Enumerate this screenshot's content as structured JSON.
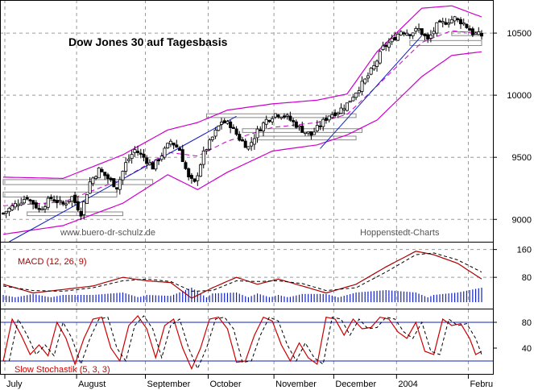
{
  "chart_data": [
    {
      "panel": "price",
      "type": "candlestick",
      "title": "Dow Jones 30 auf Tagesbasis",
      "watermark_left": "www.buero-dr-schulz.de",
      "watermark_right": "Hoppenstedt-Charts",
      "y_ticks": [
        9000,
        9500,
        10000,
        10500
      ],
      "ylim": [
        8820,
        10760
      ],
      "x_months": [
        "July",
        "August",
        "September",
        "October",
        "November",
        "December",
        "2004",
        "Febru"
      ],
      "close_anchors": [
        {
          "day": 0,
          "value": 9050
        },
        {
          "day": 4,
          "value": 9120
        },
        {
          "day": 8,
          "value": 9180
        },
        {
          "day": 12,
          "value": 9080
        },
        {
          "day": 16,
          "value": 9170
        },
        {
          "day": 20,
          "value": 9120
        },
        {
          "day": 23,
          "value": 9180
        },
        {
          "day": 26,
          "value": 9050
        },
        {
          "day": 29,
          "value": 9300
        },
        {
          "day": 32,
          "value": 9400
        },
        {
          "day": 35,
          "value": 9330
        },
        {
          "day": 38,
          "value": 9260
        },
        {
          "day": 41,
          "value": 9450
        },
        {
          "day": 44,
          "value": 9560
        },
        {
          "day": 47,
          "value": 9500
        },
        {
          "day": 50,
          "value": 9420
        },
        {
          "day": 53,
          "value": 9520
        },
        {
          "day": 56,
          "value": 9630
        },
        {
          "day": 59,
          "value": 9560
        },
        {
          "day": 62,
          "value": 9330
        },
        {
          "day": 64,
          "value": 9290
        },
        {
          "day": 67,
          "value": 9530
        },
        {
          "day": 70,
          "value": 9660
        },
        {
          "day": 73,
          "value": 9790
        },
        {
          "day": 76,
          "value": 9760
        },
        {
          "day": 79,
          "value": 9650
        },
        {
          "day": 82,
          "value": 9580
        },
        {
          "day": 85,
          "value": 9710
        },
        {
          "day": 88,
          "value": 9800
        },
        {
          "day": 91,
          "value": 9850
        },
        {
          "day": 94,
          "value": 9840
        },
        {
          "day": 97,
          "value": 9780
        },
        {
          "day": 100,
          "value": 9720
        },
        {
          "day": 103,
          "value": 9680
        },
        {
          "day": 106,
          "value": 9760
        },
        {
          "day": 109,
          "value": 9840
        },
        {
          "day": 112,
          "value": 9870
        },
        {
          "day": 115,
          "value": 9930
        },
        {
          "day": 118,
          "value": 10030
        },
        {
          "day": 121,
          "value": 10120
        },
        {
          "day": 124,
          "value": 10230
        },
        {
          "day": 127,
          "value": 10380
        },
        {
          "day": 130,
          "value": 10440
        },
        {
          "day": 133,
          "value": 10520
        },
        {
          "day": 136,
          "value": 10500
        },
        {
          "day": 139,
          "value": 10530
        },
        {
          "day": 142,
          "value": 10440
        },
        {
          "day": 145,
          "value": 10560
        },
        {
          "day": 148,
          "value": 10590
        },
        {
          "day": 151,
          "value": 10620
        },
        {
          "day": 154,
          "value": 10580
        },
        {
          "day": 157,
          "value": 10500
        },
        {
          "day": 160,
          "value": 10480
        }
      ],
      "bollinger_upper_anchors": [
        {
          "day": 0,
          "value": 9340
        },
        {
          "day": 20,
          "value": 9330
        },
        {
          "day": 40,
          "value": 9520
        },
        {
          "day": 55,
          "value": 9720
        },
        {
          "day": 65,
          "value": 9780
        },
        {
          "day": 75,
          "value": 9880
        },
        {
          "day": 90,
          "value": 9930
        },
        {
          "day": 105,
          "value": 9960
        },
        {
          "day": 115,
          "value": 10010
        },
        {
          "day": 125,
          "value": 10350
        },
        {
          "day": 140,
          "value": 10700
        },
        {
          "day": 150,
          "value": 10720
        },
        {
          "day": 160,
          "value": 10630
        }
      ],
      "bollinger_lower_anchors": [
        {
          "day": 0,
          "value": 8880
        },
        {
          "day": 20,
          "value": 8950
        },
        {
          "day": 40,
          "value": 9130
        },
        {
          "day": 55,
          "value": 9360
        },
        {
          "day": 65,
          "value": 9240
        },
        {
          "day": 75,
          "value": 9380
        },
        {
          "day": 90,
          "value": 9550
        },
        {
          "day": 105,
          "value": 9600
        },
        {
          "day": 115,
          "value": 9680
        },
        {
          "day": 125,
          "value": 9800
        },
        {
          "day": 140,
          "value": 10150
        },
        {
          "day": 150,
          "value": 10320
        },
        {
          "day": 160,
          "value": 10350
        }
      ],
      "trendlines": [
        {
          "from": {
            "day": 2,
            "value": 8820
          },
          "to": {
            "day": 78,
            "value": 9830
          }
        },
        {
          "from": {
            "day": 106,
            "value": 9570
          },
          "to": {
            "day": 140,
            "value": 10480
          }
        }
      ],
      "colors": {
        "up": "#ffffff",
        "down": "#000000",
        "bollinger": "#cc00cc",
        "moving_average": "#cc00cc",
        "trendline": "#1020c0",
        "box": "#888888"
      }
    },
    {
      "panel": "macd",
      "type": "line",
      "label": "MACD (12, 26, 9)",
      "y_ticks": [
        80,
        160
      ],
      "ylim": [
        -10,
        180
      ],
      "macd_anchors": [
        {
          "day": 0,
          "value": 60
        },
        {
          "day": 10,
          "value": 35
        },
        {
          "day": 20,
          "value": 45
        },
        {
          "day": 30,
          "value": 55
        },
        {
          "day": 40,
          "value": 80
        },
        {
          "day": 48,
          "value": 70
        },
        {
          "day": 56,
          "value": 65
        },
        {
          "day": 63,
          "value": 20
        },
        {
          "day": 70,
          "value": 50
        },
        {
          "day": 78,
          "value": 80
        },
        {
          "day": 85,
          "value": 60
        },
        {
          "day": 92,
          "value": 75
        },
        {
          "day": 100,
          "value": 55
        },
        {
          "day": 108,
          "value": 35
        },
        {
          "day": 118,
          "value": 60
        },
        {
          "day": 128,
          "value": 110
        },
        {
          "day": 138,
          "value": 155
        },
        {
          "day": 144,
          "value": 145
        },
        {
          "day": 152,
          "value": 120
        },
        {
          "day": 160,
          "value": 75
        }
      ],
      "signal_anchors": [
        {
          "day": 0,
          "value": 55
        },
        {
          "day": 10,
          "value": 42
        },
        {
          "day": 20,
          "value": 40
        },
        {
          "day": 30,
          "value": 50
        },
        {
          "day": 40,
          "value": 70
        },
        {
          "day": 48,
          "value": 75
        },
        {
          "day": 56,
          "value": 68
        },
        {
          "day": 63,
          "value": 40
        },
        {
          "day": 70,
          "value": 42
        },
        {
          "day": 78,
          "value": 70
        },
        {
          "day": 85,
          "value": 68
        },
        {
          "day": 92,
          "value": 70
        },
        {
          "day": 100,
          "value": 62
        },
        {
          "day": 108,
          "value": 42
        },
        {
          "day": 118,
          "value": 50
        },
        {
          "day": 128,
          "value": 95
        },
        {
          "day": 138,
          "value": 145
        },
        {
          "day": 144,
          "value": 150
        },
        {
          "day": 152,
          "value": 130
        },
        {
          "day": 160,
          "value": 95
        }
      ],
      "colors": {
        "macd": "#aa0000",
        "signal": "#aa0000",
        "histogram": "#1020c0"
      }
    },
    {
      "panel": "stochastic",
      "type": "line",
      "label": "Slow Stochastik (5, 3, 3)",
      "y_ticks": [
        40,
        80
      ],
      "ylim": [
        0,
        100
      ],
      "reference_lines": [
        80,
        20
      ],
      "k_anchors": [
        {
          "day": 0,
          "value": 20
        },
        {
          "day": 3,
          "value": 85
        },
        {
          "day": 6,
          "value": 60
        },
        {
          "day": 9,
          "value": 30
        },
        {
          "day": 12,
          "value": 45
        },
        {
          "day": 15,
          "value": 28
        },
        {
          "day": 18,
          "value": 80
        },
        {
          "day": 21,
          "value": 55
        },
        {
          "day": 24,
          "value": 15
        },
        {
          "day": 27,
          "value": 55
        },
        {
          "day": 30,
          "value": 85
        },
        {
          "day": 33,
          "value": 88
        },
        {
          "day": 36,
          "value": 40
        },
        {
          "day": 39,
          "value": 20
        },
        {
          "day": 42,
          "value": 75
        },
        {
          "day": 45,
          "value": 90
        },
        {
          "day": 48,
          "value": 70
        },
        {
          "day": 51,
          "value": 25
        },
        {
          "day": 54,
          "value": 75
        },
        {
          "day": 57,
          "value": 85
        },
        {
          "day": 60,
          "value": 40
        },
        {
          "day": 63,
          "value": 8
        },
        {
          "day": 66,
          "value": 40
        },
        {
          "day": 69,
          "value": 85
        },
        {
          "day": 72,
          "value": 88
        },
        {
          "day": 75,
          "value": 70
        },
        {
          "day": 78,
          "value": 18
        },
        {
          "day": 81,
          "value": 20
        },
        {
          "day": 84,
          "value": 60
        },
        {
          "day": 87,
          "value": 88
        },
        {
          "day": 90,
          "value": 82
        },
        {
          "day": 93,
          "value": 45
        },
        {
          "day": 96,
          "value": 20
        },
        {
          "day": 99,
          "value": 48
        },
        {
          "day": 102,
          "value": 25
        },
        {
          "day": 105,
          "value": 15
        },
        {
          "day": 108,
          "value": 88
        },
        {
          "day": 111,
          "value": 85
        },
        {
          "day": 114,
          "value": 60
        },
        {
          "day": 117,
          "value": 85
        },
        {
          "day": 120,
          "value": 70
        },
        {
          "day": 123,
          "value": 72
        },
        {
          "day": 126,
          "value": 88
        },
        {
          "day": 129,
          "value": 85
        },
        {
          "day": 132,
          "value": 65
        },
        {
          "day": 135,
          "value": 55
        },
        {
          "day": 138,
          "value": 80
        },
        {
          "day": 141,
          "value": 35
        },
        {
          "day": 144,
          "value": 30
        },
        {
          "day": 147,
          "value": 85
        },
        {
          "day": 150,
          "value": 75
        },
        {
          "day": 153,
          "value": 78
        },
        {
          "day": 156,
          "value": 55
        },
        {
          "day": 158,
          "value": 30
        },
        {
          "day": 160,
          "value": 35
        }
      ],
      "colors": {
        "k": "#cc0000",
        "d": "#000000",
        "reference": "#1020c0"
      }
    }
  ]
}
